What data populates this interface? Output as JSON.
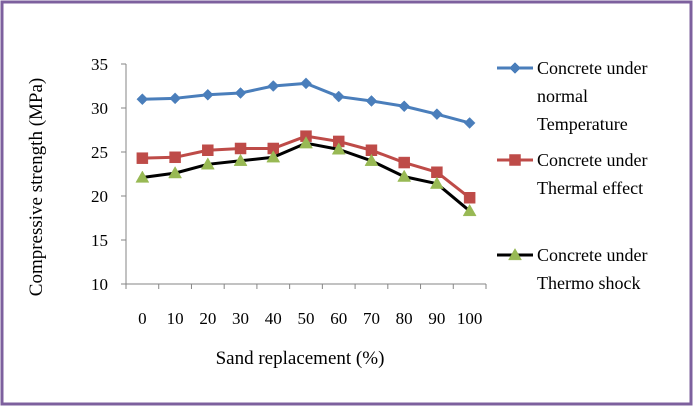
{
  "chart_data": {
    "type": "line",
    "title": "",
    "xlabel": "Sand replacement (%)",
    "ylabel": "Compressive strength (MPa)",
    "categories": [
      "0",
      "10",
      "20",
      "30",
      "40",
      "50",
      "60",
      "70",
      "80",
      "90",
      "100"
    ],
    "ylim": [
      10,
      35
    ],
    "yticks": [
      "10",
      "15",
      "20",
      "25",
      "30",
      "35"
    ],
    "grid": false,
    "legend_position": "right",
    "series": [
      {
        "name_lines": [
          "Concrete under",
          "normal",
          "Temperature"
        ],
        "color": "#4a7ebb",
        "marker": "diamond",
        "values": [
          31.0,
          31.1,
          31.5,
          31.7,
          32.5,
          32.8,
          31.3,
          30.8,
          30.2,
          29.3,
          28.3
        ]
      },
      {
        "name_lines": [
          "Concrete under",
          "Thermal effect"
        ],
        "color": "#be4b48",
        "marker": "square",
        "values": [
          24.3,
          24.4,
          25.2,
          25.4,
          25.4,
          26.8,
          26.2,
          25.2,
          23.8,
          22.7,
          19.8
        ]
      },
      {
        "name_lines": [
          "Concrete under",
          "Thermo shock"
        ],
        "color": "#000000",
        "marker_color": "#98b954",
        "marker": "triangle",
        "values": [
          22.1,
          22.6,
          23.6,
          24.0,
          24.4,
          26.0,
          25.3,
          24.0,
          22.2,
          21.4,
          18.3
        ]
      }
    ]
  },
  "frame": {
    "border_color": "#7d609e",
    "background": "#ffffff"
  }
}
